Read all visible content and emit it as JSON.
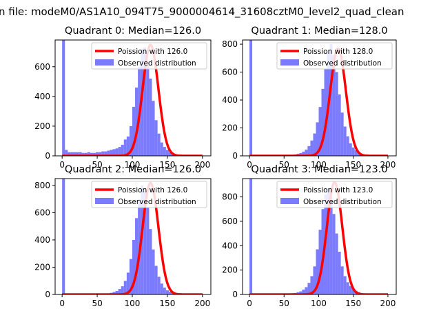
{
  "figure": {
    "suptitle": "n file: modeM0/AS1A10_094T75_9000004614_31608cztM0_level2_quad_clean"
  },
  "colors": {
    "hist": "#7b7bff",
    "fit": "#ff0000",
    "axis": "#000000",
    "legend_border": "#cccccc"
  },
  "chart_data": [
    {
      "type": "bar",
      "title": "Quadrant 0: Median=126.0",
      "median": 126.0,
      "bin_edges_start": 0,
      "bin_width": 4,
      "counts": [
        780,
        40,
        25,
        25,
        25,
        25,
        25,
        20,
        20,
        25,
        20,
        20,
        25,
        25,
        30,
        30,
        35,
        40,
        45,
        50,
        60,
        75,
        110,
        130,
        200,
        330,
        460,
        600,
        720,
        730,
        640,
        520,
        370,
        240,
        150,
        90,
        60,
        40,
        25,
        15,
        10,
        5,
        3,
        2,
        1,
        1,
        1,
        1,
        1,
        0
      ],
      "poisson_mean": 126.0,
      "poisson_scale": 747,
      "xlim": [
        -10,
        212
      ],
      "ylim": [
        0,
        780
      ],
      "xticks": [
        0,
        50,
        100,
        150,
        200
      ],
      "yticks": [
        0,
        200,
        400,
        600
      ],
      "legend": {
        "fit_label": "Poission with 126.0",
        "hist_label": "Observed distribution",
        "placement": "upper right"
      }
    },
    {
      "type": "bar",
      "title": "Quadrant 1: Median=128.0",
      "median": 128.0,
      "bin_edges_start": 0,
      "bin_width": 4,
      "counts": [
        830,
        3,
        2,
        2,
        2,
        2,
        2,
        2,
        2,
        2,
        3,
        3,
        4,
        5,
        5,
        6,
        10,
        15,
        20,
        30,
        45,
        70,
        110,
        160,
        240,
        350,
        480,
        620,
        750,
        800,
        720,
        600,
        440,
        310,
        210,
        140,
        90,
        60,
        40,
        25,
        15,
        10,
        5,
        3,
        2,
        1,
        1,
        1,
        1,
        0
      ],
      "poisson_mean": 128.0,
      "poisson_scale": 768,
      "xlim": [
        -10,
        212
      ],
      "ylim": [
        0,
        830
      ],
      "xticks": [
        0,
        50,
        100,
        150,
        200
      ],
      "yticks": [
        0,
        200,
        400,
        600,
        800
      ],
      "legend": {
        "fit_label": "Poission with 128.0",
        "hist_label": "Observed distribution",
        "placement": "upper right"
      }
    },
    {
      "type": "bar",
      "title": "Quadrant 2: Median=126.0",
      "median": 126.0,
      "bin_edges_start": 0,
      "bin_width": 4,
      "counts": [
        850,
        3,
        2,
        2,
        2,
        2,
        2,
        2,
        2,
        2,
        3,
        3,
        3,
        3,
        4,
        5,
        8,
        12,
        18,
        25,
        40,
        60,
        100,
        160,
        260,
        400,
        560,
        700,
        800,
        760,
        640,
        480,
        330,
        210,
        130,
        80,
        50,
        30,
        20,
        12,
        8,
        5,
        3,
        2,
        1,
        1,
        1,
        1,
        1,
        0
      ],
      "poisson_mean": 126.0,
      "poisson_scale": 818,
      "xlim": [
        -10,
        212
      ],
      "ylim": [
        0,
        850
      ],
      "xticks": [
        0,
        50,
        100,
        150,
        200
      ],
      "yticks": [
        0,
        200,
        400,
        600,
        800
      ],
      "legend": {
        "fit_label": "Poission with 126.0",
        "hist_label": "Observed distribution",
        "placement": "upper right"
      }
    },
    {
      "type": "bar",
      "title": "Quadrant 3: Median=123.0",
      "median": 123.0,
      "bin_edges_start": 0,
      "bin_width": 4,
      "counts": [
        950,
        3,
        2,
        2,
        2,
        2,
        2,
        2,
        2,
        3,
        3,
        4,
        5,
        6,
        8,
        10,
        12,
        18,
        25,
        40,
        60,
        95,
        150,
        230,
        370,
        530,
        700,
        820,
        870,
        800,
        660,
        500,
        350,
        230,
        150,
        100,
        70,
        45,
        30,
        20,
        12,
        8,
        5,
        3,
        2,
        1,
        1,
        1,
        1,
        0
      ],
      "poisson_mean": 123.0,
      "poisson_scale": 920,
      "xlim": [
        -10,
        212
      ],
      "ylim": [
        0,
        950
      ],
      "xticks": [
        0,
        50,
        100,
        150,
        200
      ],
      "yticks": [
        0,
        200,
        400,
        600,
        800
      ],
      "legend": {
        "fit_label": "Poission with 123.0",
        "hist_label": "Observed distribution",
        "placement": "upper right"
      }
    }
  ]
}
